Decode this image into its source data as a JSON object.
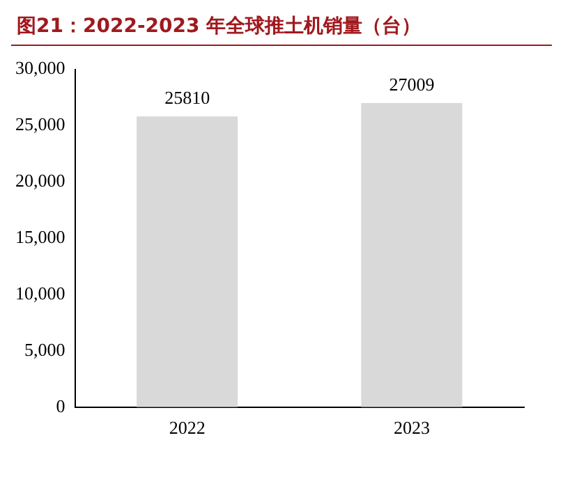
{
  "chart_data": {
    "type": "bar",
    "title": "图21：2022-2023 年全球推土机销量（台）",
    "categories": [
      "2022",
      "2023"
    ],
    "values": [
      25810,
      27009
    ],
    "color": "#d9d9d9",
    "ylim": [
      0,
      30000
    ],
    "yticks": [
      {
        "value": 0,
        "label": "0"
      },
      {
        "value": 5000,
        "label": "5,000"
      },
      {
        "value": 10000,
        "label": "10,000"
      },
      {
        "value": 15000,
        "label": "15,000"
      },
      {
        "value": 20000,
        "label": "20,000"
      },
      {
        "value": 25000,
        "label": "25,000"
      },
      {
        "value": 30000,
        "label": "30,000"
      }
    ],
    "grid": false,
    "legend": false,
    "data_labels": true
  }
}
